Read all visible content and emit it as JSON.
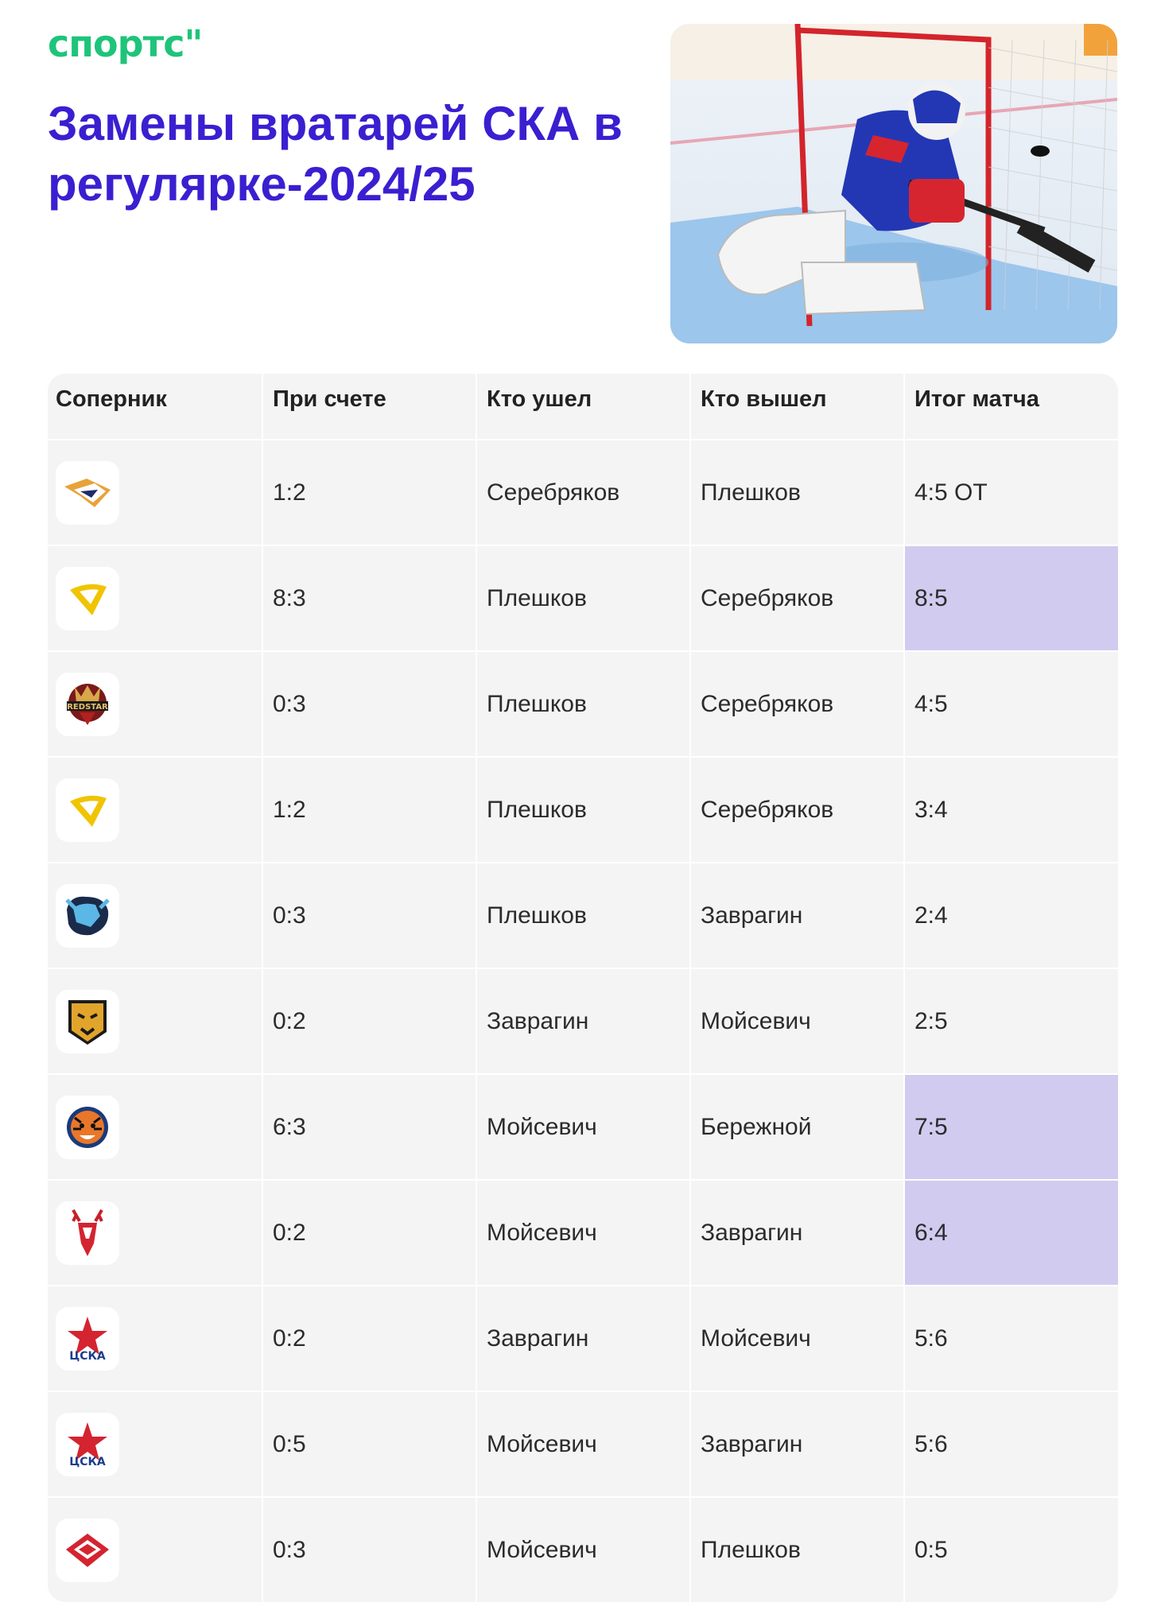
{
  "brand": "спортс\"",
  "title": "Замены вратарей СКА в регулярке-2024/25",
  "colors": {
    "brand_green": "#1ec47a",
    "title_purple": "#3a1fd1",
    "highlight": "#d2cbf0"
  },
  "table": {
    "headers": [
      "Соперник",
      "При счете",
      "Кто ушел",
      "Кто вышел",
      "Итог матча"
    ],
    "rows": [
      {
        "opponent_icon": "metallurg-logo-icon",
        "score": "1:2",
        "out": "Серебряков",
        "in": "Плешков",
        "result": "4:5 ОТ",
        "highlight": false
      },
      {
        "opponent_icon": "torpedo-logo-icon",
        "score": "8:3",
        "out": "Плешков",
        "in": "Серебряков",
        "result": "8:5",
        "highlight": true
      },
      {
        "opponent_icon": "kunlun-red-star-logo-icon",
        "score": "0:3",
        "out": "Плешков",
        "in": "Серебряков",
        "result": "4:5",
        "highlight": false
      },
      {
        "opponent_icon": "torpedo-logo-icon",
        "score": "1:2",
        "out": "Плешков",
        "in": "Серебряков",
        "result": "3:4",
        "highlight": false
      },
      {
        "opponent_icon": "dinamo-minsk-bison-logo-icon",
        "score": "0:3",
        "out": "Плешков",
        "in": "Заврагин",
        "result": "2:4",
        "highlight": false
      },
      {
        "opponent_icon": "severstal-leopard-logo-icon",
        "score": "0:2",
        "out": "Заврагин",
        "in": "Мойсевич",
        "result": "2:5",
        "highlight": false
      },
      {
        "opponent_icon": "amur-tiger-logo-icon",
        "score": "6:3",
        "out": "Мойсевич",
        "in": "Бережной",
        "result": "7:5",
        "highlight": true
      },
      {
        "opponent_icon": "lokomotiv-deer-logo-icon",
        "score": "0:2",
        "out": "Мойсевич",
        "in": "Заврагин",
        "result": "6:4",
        "highlight": true
      },
      {
        "opponent_icon": "cska-logo-icon",
        "score": "0:2",
        "out": "Заврагин",
        "in": "Мойсевич",
        "result": "5:6",
        "highlight": false
      },
      {
        "opponent_icon": "cska-logo-icon",
        "score": "0:5",
        "out": "Мойсевич",
        "in": "Заврагин",
        "result": "5:6",
        "highlight": false
      },
      {
        "opponent_icon": "spartak-logo-icon",
        "score": "0:3",
        "out": "Мойсевич",
        "in": "Плешков",
        "result": "0:5",
        "highlight": false
      }
    ]
  }
}
